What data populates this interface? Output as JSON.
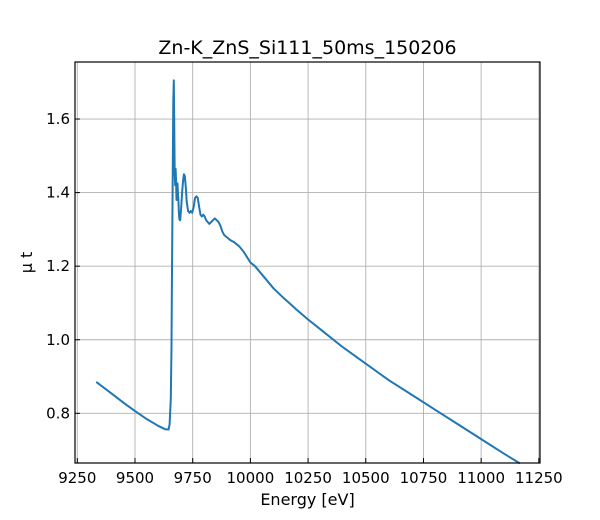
{
  "chart_data": {
    "type": "line",
    "title": "Zn-K_ZnS_Si111_50ms_150206",
    "xlabel": "Energy [eV]",
    "ylabel": "μ t",
    "xlim": [
      9240,
      11255
    ],
    "ylim": [
      0.665,
      1.755
    ],
    "xticks": [
      9250,
      9500,
      9750,
      10000,
      10250,
      10500,
      10750,
      11000,
      11250
    ],
    "yticks": [
      0.8,
      1.0,
      1.2,
      1.4,
      1.6
    ],
    "xtick_labels": [
      "9250",
      "9500",
      "9750",
      "10000",
      "10250",
      "10500",
      "10750",
      "11000",
      "11250"
    ],
    "ytick_labels": [
      "0.8",
      "1.0",
      "1.2",
      "1.4",
      "1.6"
    ],
    "grid": true,
    "tick_direction": "in",
    "line_color": "#1f77b4",
    "series": [
      {
        "x": [
          9335,
          9360,
          9400,
          9450,
          9500,
          9550,
          9600,
          9630,
          9645,
          9650,
          9655,
          9658,
          9660,
          9662,
          9664,
          9665,
          9666,
          9668,
          9670,
          9672,
          9674,
          9676,
          9678,
          9680,
          9682,
          9684,
          9686,
          9688,
          9690,
          9692,
          9696,
          9700,
          9704,
          9708,
          9712,
          9716,
          9720,
          9724,
          9730,
          9736,
          9742,
          9748,
          9754,
          9760,
          9766,
          9772,
          9778,
          9784,
          9790,
          9796,
          9802,
          9808,
          9815,
          9822,
          9830,
          9838,
          9846,
          9854,
          9862,
          9870,
          9878,
          9886,
          9895,
          9905,
          9915,
          9930,
          9950,
          9970,
          9990,
          10000,
          10010,
          10020,
          10040,
          10060,
          10080,
          10100,
          10125,
          10150,
          10175,
          10200,
          10250,
          10300,
          10400,
          10500,
          10600,
          10700,
          10800,
          10900,
          11000,
          11100,
          11165
        ],
        "y": [
          0.884,
          0.872,
          0.853,
          0.829,
          0.806,
          0.785,
          0.766,
          0.757,
          0.756,
          0.77,
          0.84,
          0.98,
          1.15,
          1.33,
          1.48,
          1.58,
          1.65,
          1.705,
          1.6,
          1.45,
          1.42,
          1.465,
          1.43,
          1.38,
          1.41,
          1.425,
          1.4,
          1.38,
          1.35,
          1.328,
          1.325,
          1.36,
          1.4,
          1.43,
          1.45,
          1.445,
          1.415,
          1.375,
          1.35,
          1.345,
          1.35,
          1.345,
          1.36,
          1.385,
          1.39,
          1.385,
          1.36,
          1.34,
          1.335,
          1.34,
          1.335,
          1.325,
          1.32,
          1.315,
          1.32,
          1.325,
          1.33,
          1.325,
          1.32,
          1.31,
          1.295,
          1.285,
          1.28,
          1.275,
          1.27,
          1.265,
          1.255,
          1.24,
          1.22,
          1.21,
          1.205,
          1.2,
          1.185,
          1.17,
          1.155,
          1.14,
          1.125,
          1.11,
          1.096,
          1.082,
          1.055,
          1.03,
          0.98,
          0.935,
          0.89,
          0.85,
          0.81,
          0.77,
          0.73,
          0.69,
          0.665
        ]
      }
    ]
  }
}
